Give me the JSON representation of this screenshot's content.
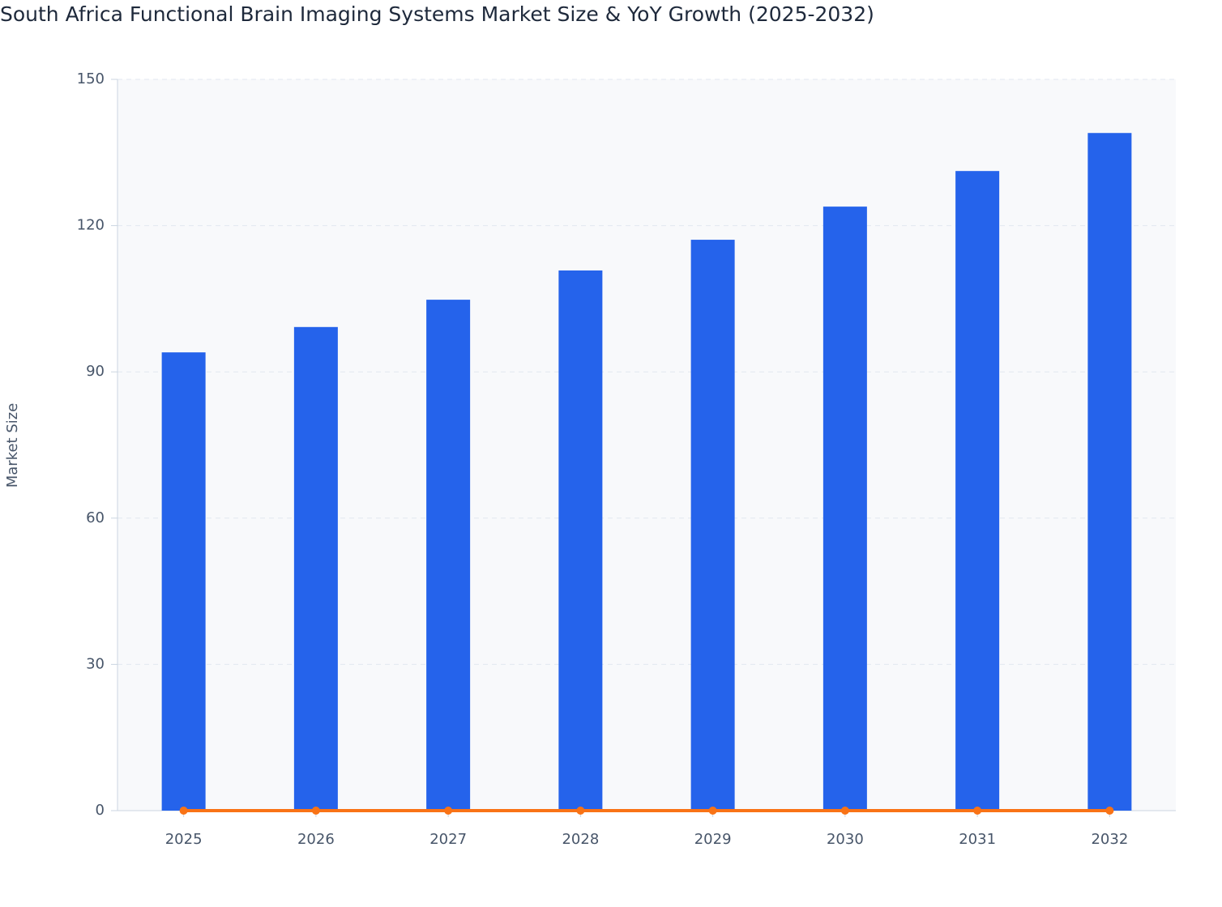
{
  "chart_data": {
    "type": "bar",
    "title": "South Africa Functional Brain Imaging Systems Market Size & YoY Growth (2025-2032)",
    "y_label": "Market Size",
    "categories": [
      "2025",
      "2026",
      "2027",
      "2028",
      "2029",
      "2030",
      "2031",
      "2032"
    ],
    "series": [
      {
        "type": "bar",
        "color": "#2563eb",
        "values": [
          94.0,
          99.2,
          104.8,
          110.8,
          117.1,
          123.9,
          131.2,
          139.0
        ]
      },
      {
        "type": "line",
        "color": "#f97316",
        "values": [
          0,
          0,
          0,
          0,
          0,
          0,
          0,
          0
        ]
      }
    ],
    "ylim": [
      0,
      150
    ],
    "yticks": [
      0,
      30,
      60,
      90,
      120,
      150
    ],
    "grid": true
  }
}
